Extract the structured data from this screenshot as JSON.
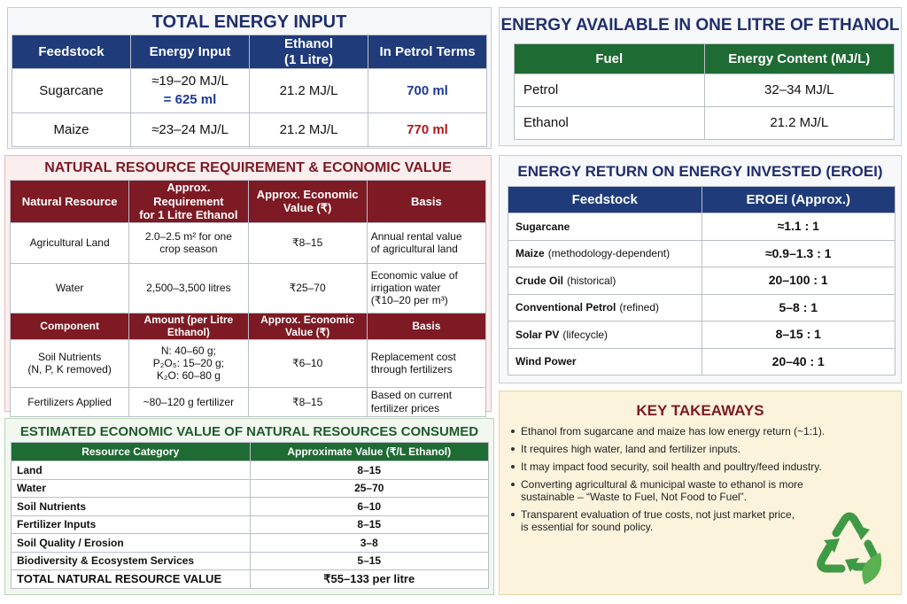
{
  "energy_input": {
    "title": "TOTAL ENERGY INPUT",
    "columns": [
      "Feedstock",
      "Energy Input",
      [
        "Ethanol",
        "(1 Litre)"
      ],
      "In Petrol Terms"
    ],
    "rows": [
      [
        "Sugarcane",
        [
          "≈19–20 MJ/L",
          "= 625 ml"
        ],
        "21.2 MJ/L",
        "700 ml"
      ],
      [
        "Maize",
        "≈23–24 MJ/L",
        "21.2 MJ/L",
        "770 ml"
      ]
    ]
  },
  "energy_available": {
    "title": "ENERGY AVAILABLE IN ONE LITRE OF ETHANOL",
    "columns": [
      "Fuel",
      "Energy Content (MJ/L)"
    ],
    "rows": [
      [
        "Petrol",
        "32–34 MJ/L"
      ],
      [
        "Ethanol",
        "21.2 MJ/L"
      ]
    ]
  },
  "natural_resource": {
    "title": "NATURAL RESOURCE REQUIREMENT & ECONOMIC VALUE",
    "table1": {
      "columns": [
        "Natural Resource",
        [
          "Approx. Requirement",
          "for 1 Litre Ethanol"
        ],
        [
          "Approx. Economic",
          "Value (₹)"
        ],
        "Basis"
      ],
      "rows": [
        [
          "Agricultural Land",
          [
            "2.0–2.5 m² for one",
            "crop season"
          ],
          "₹8–15",
          [
            "Annual rental value",
            "of agricultural land"
          ]
        ],
        [
          "Water",
          "2,500–3,500 litres",
          "₹25–70",
          [
            "Economic value of",
            "irrigation water",
            "(₹10–20 per m³)"
          ]
        ]
      ]
    },
    "table2": {
      "columns": [
        "Component",
        "Amount (per Litre Ethanol)",
        "Approx. Economic Value (₹)",
        "Basis"
      ],
      "rows": [
        [
          [
            "Soil Nutrients",
            "(N, P, K removed)"
          ],
          [
            "N: 40–60 g;",
            "P₂O₅: 15–20 g;",
            "K₂O: 60–80 g"
          ],
          "₹6–10",
          [
            "Replacement cost",
            "through fertilizers"
          ]
        ],
        [
          "Fertilizers Applied",
          "~80–120 g fertilizer",
          "₹8–15",
          [
            "Based on current",
            "fertilizer prices"
          ]
        ]
      ]
    }
  },
  "economic_value": {
    "title": "ESTIMATED ECONOMIC VALUE OF NATURAL RESOURCES CONSUMED",
    "columns": [
      "Resource Category",
      "Approximate Value (₹/L Ethanol)"
    ],
    "rows": [
      [
        "Land",
        "8–15"
      ],
      [
        "Water",
        "25–70"
      ],
      [
        "Soil Nutrients",
        "6–10"
      ],
      [
        "Fertilizer Inputs",
        "8–15"
      ],
      [
        "Soil Quality / Erosion",
        "3–8"
      ],
      [
        "Biodiversity & Ecosystem Services",
        "5–15"
      ],
      [
        "TOTAL NATURAL RESOURCE VALUE",
        "₹55–133 per litre"
      ]
    ]
  },
  "eroei": {
    "title": "ENERGY RETURN ON ENERGY INVESTED (EROEI)",
    "columns": [
      "Feedstock",
      "EROEI (Approx.)"
    ],
    "rows": [
      [
        {
          "name": "Sugarcane"
        },
        "≈1.1 : 1"
      ],
      [
        {
          "name": "Maize",
          "note": "(methodology-dependent)"
        },
        "≈0.9–1.3 : 1"
      ],
      [
        {
          "name": "Crude Oil",
          "note": "(historical)"
        },
        "20–100 : 1"
      ],
      [
        {
          "name": "Conventional Petrol",
          "note": "(refined)"
        },
        "5–8 : 1"
      ],
      [
        {
          "name": "Solar PV",
          "note": "(lifecycle)"
        },
        "8–15 : 1"
      ],
      [
        {
          "name": "Wind Power"
        },
        "20–40 : 1"
      ]
    ]
  },
  "takeaways": {
    "title": "KEY TAKEAWAYS",
    "items": [
      [
        "Ethanol from sugarcane and maize has low energy return (~1:1)."
      ],
      [
        "It requires high water, land and fertilizer inputs."
      ],
      [
        "It may impact food security, soil health and poultry/feed industry."
      ],
      [
        "Converting agricultural & municipal waste to ethanol is more",
        "sustainable – “Waste to Fuel, Not Food to Fuel”."
      ],
      [
        "Transparent evaluation of true costs, not just market price,",
        "is essential for sound policy."
      ]
    ]
  }
}
